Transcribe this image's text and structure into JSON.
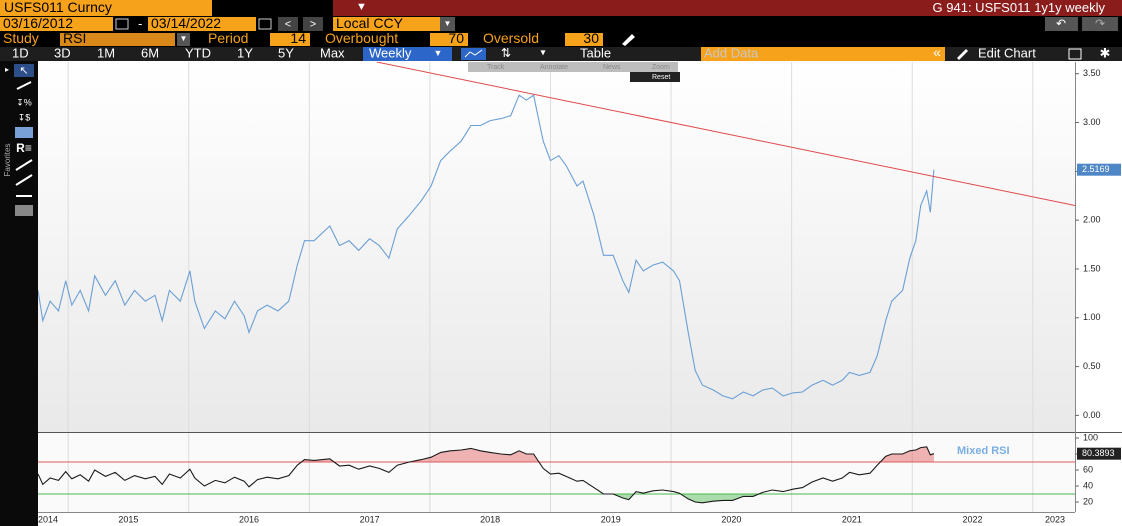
{
  "ui": {
    "ticker": "USFS011 Curncy",
    "window_title": "G 941: USFS011 1y1y weekly",
    "start_date": "03/16/2012",
    "date_separator": "-",
    "end_date": "03/14/2022",
    "currency": "Local CCY",
    "study_label": "Study",
    "study": "RSI",
    "period_label": "Period",
    "overbought_label": "Overbought",
    "oversold_label": "Oversold",
    "ranges": [
      "1D",
      "3D",
      "1M",
      "6M",
      "YTD",
      "1Y",
      "5Y",
      "Max"
    ],
    "frequency": "Weekly",
    "table": "Table",
    "add_data": "Add Data",
    "edit_chart": "Edit Chart",
    "favorites": "Favorites",
    "chart_tools": [
      "Track",
      "Annotate",
      "News",
      "Zoom"
    ],
    "reset": "Reset"
  },
  "chart_data": [
    {
      "type": "line",
      "x": [
        2014.75,
        2014.79,
        2014.85,
        2014.92,
        2014.98,
        2015.03,
        2015.1,
        2015.17,
        2015.22,
        2015.31,
        2015.39,
        2015.47,
        2015.55,
        2015.64,
        2015.72,
        2015.78,
        2015.84,
        2015.93,
        2016.01,
        2016.05,
        2016.13,
        2016.22,
        2016.3,
        2016.38,
        2016.46,
        2016.5,
        2016.57,
        2016.65,
        2016.74,
        2016.83,
        2016.9,
        2016.96,
        2017.04,
        2017.17,
        2017.25,
        2017.33,
        2017.41,
        2017.5,
        2017.58,
        2017.66,
        2017.73,
        2017.83,
        2017.93,
        2018.01,
        2018.09,
        2018.17,
        2018.26,
        2018.34,
        2018.42,
        2018.5,
        2018.59,
        2018.67,
        2018.74,
        2018.8,
        2018.86,
        2018.94,
        2019.0,
        2019.07,
        2019.13,
        2019.22,
        2019.27,
        2019.36,
        2019.44,
        2019.52,
        2019.6,
        2019.65,
        2019.71,
        2019.77,
        2019.85,
        2019.93,
        2020.02,
        2020.07,
        2020.14,
        2020.2,
        2020.26,
        2020.35,
        2020.43,
        2020.51,
        2020.6,
        2020.68,
        2020.76,
        2020.84,
        2020.93,
        2021.01,
        2021.09,
        2021.17,
        2021.26,
        2021.34,
        2021.42,
        2021.48,
        2021.56,
        2021.65,
        2021.71,
        2021.78,
        2021.83,
        2021.92,
        2021.98,
        2022.03,
        2022.07,
        2022.12,
        2022.15,
        2022.18
      ],
      "series": [
        {
          "color": "#6b9fd6",
          "values": [
            1.28,
            0.97,
            1.17,
            1.07,
            1.38,
            1.13,
            1.28,
            1.07,
            1.43,
            1.23,
            1.38,
            1.13,
            1.28,
            1.17,
            1.23,
            0.97,
            1.28,
            1.17,
            1.48,
            1.17,
            0.89,
            1.07,
            0.99,
            1.17,
            1.02,
            0.85,
            1.07,
            1.13,
            1.07,
            1.17,
            1.54,
            1.79,
            1.79,
            1.94,
            1.74,
            1.79,
            1.69,
            1.81,
            1.74,
            1.61,
            1.91,
            2.05,
            2.2,
            2.35,
            2.61,
            2.71,
            2.81,
            2.97,
            2.97,
            3.02,
            3.04,
            3.07,
            3.28,
            3.23,
            3.28,
            2.81,
            2.61,
            2.66,
            2.56,
            2.35,
            2.4,
            2.05,
            1.64,
            1.64,
            1.38,
            1.26,
            1.59,
            1.48,
            1.54,
            1.57,
            1.48,
            1.38,
            0.87,
            0.46,
            0.31,
            0.26,
            0.2,
            0.17,
            0.24,
            0.2,
            0.26,
            0.28,
            0.2,
            0.23,
            0.24,
            0.31,
            0.36,
            0.31,
            0.36,
            0.44,
            0.41,
            0.44,
            0.61,
            0.97,
            1.17,
            1.28,
            1.61,
            1.79,
            2.15,
            2.3,
            2.08,
            2.5169
          ]
        }
      ],
      "trendline": {
        "x": [
          2017.56,
          2023.35
        ],
        "values": [
          3.62,
          2.15
        ],
        "color": "#e04848"
      },
      "xlim": [
        2014.75,
        2023.35
      ],
      "xticks": [
        2014,
        2015,
        2016,
        2017,
        2018,
        2019,
        2020,
        2021,
        2022,
        2023
      ],
      "ylim": [
        -0.17,
        3.62
      ],
      "yticks": [
        {
          "value": 0,
          "label": "0.00"
        },
        {
          "value": 0.5,
          "label": "0.50"
        },
        {
          "value": 1,
          "label": "1.00"
        },
        {
          "value": 1.5,
          "label": "1.50"
        },
        {
          "value": 2,
          "label": "2.00"
        },
        {
          "value": 2.5,
          "label": "2.50"
        },
        {
          "value": 3,
          "label": "3.00"
        },
        {
          "value": 3.5,
          "label": "3.50"
        }
      ],
      "grid": true
    },
    {
      "type": "line",
      "x": [
        2014.75,
        2014.79,
        2014.85,
        2014.92,
        2014.98,
        2015.03,
        2015.1,
        2015.17,
        2015.22,
        2015.31,
        2015.39,
        2015.47,
        2015.55,
        2015.64,
        2015.72,
        2015.78,
        2015.84,
        2015.93,
        2016.01,
        2016.05,
        2016.13,
        2016.22,
        2016.3,
        2016.38,
        2016.46,
        2016.5,
        2016.57,
        2016.65,
        2016.74,
        2016.83,
        2016.9,
        2016.96,
        2017.04,
        2017.17,
        2017.25,
        2017.33,
        2017.41,
        2017.5,
        2017.58,
        2017.66,
        2017.73,
        2017.83,
        2017.93,
        2018.01,
        2018.09,
        2018.17,
        2018.26,
        2018.34,
        2018.42,
        2018.5,
        2018.59,
        2018.67,
        2018.74,
        2018.8,
        2018.86,
        2018.94,
        2019.0,
        2019.07,
        2019.13,
        2019.22,
        2019.27,
        2019.36,
        2019.44,
        2019.52,
        2019.6,
        2019.65,
        2019.71,
        2019.77,
        2019.85,
        2019.93,
        2020.02,
        2020.07,
        2020.14,
        2020.2,
        2020.26,
        2020.35,
        2020.43,
        2020.51,
        2020.6,
        2020.68,
        2020.76,
        2020.84,
        2020.93,
        2021.01,
        2021.09,
        2021.17,
        2021.26,
        2021.34,
        2021.42,
        2021.48,
        2021.56,
        2021.65,
        2021.71,
        2021.78,
        2021.83,
        2021.92,
        2021.98,
        2022.03,
        2022.07,
        2022.12,
        2022.15,
        2022.18
      ],
      "series": [
        {
          "name": "Mixed RSI",
          "color": "#1a1a1a",
          "values": [
            55,
            42,
            50,
            47,
            58,
            49,
            54,
            46,
            60,
            52,
            57,
            47,
            53,
            49,
            52,
            42,
            55,
            50,
            61,
            50,
            40,
            47,
            44,
            51,
            46,
            39,
            48,
            51,
            49,
            53,
            66,
            73,
            72,
            74,
            65,
            66,
            61,
            65,
            62,
            57,
            66,
            70,
            73,
            76,
            82,
            84,
            85,
            87,
            84,
            82,
            80,
            79,
            84,
            80,
            80,
            62,
            55,
            56,
            52,
            46,
            47,
            38,
            30,
            30,
            25,
            23,
            33,
            31,
            34,
            35,
            33,
            31,
            24,
            20,
            19,
            21,
            22,
            22,
            27,
            27,
            32,
            35,
            33,
            36,
            38,
            45,
            50,
            46,
            50,
            57,
            54,
            56,
            66,
            77,
            80,
            80,
            84,
            85,
            88,
            89,
            79,
            80.3893
          ]
        }
      ],
      "period": 14,
      "overbought": 70,
      "oversold": 30,
      "overbought_color": "#e05a5a",
      "oversold_color": "#4cb84c",
      "xlim": [
        2014.75,
        2023.35
      ],
      "xticks": [
        2014,
        2015,
        2016,
        2017,
        2018,
        2019,
        2020,
        2021,
        2022,
        2023
      ],
      "ylim": [
        7.5,
        106.25
      ],
      "yticks": [
        20,
        40,
        60,
        80,
        100
      ],
      "grid": true
    }
  ]
}
